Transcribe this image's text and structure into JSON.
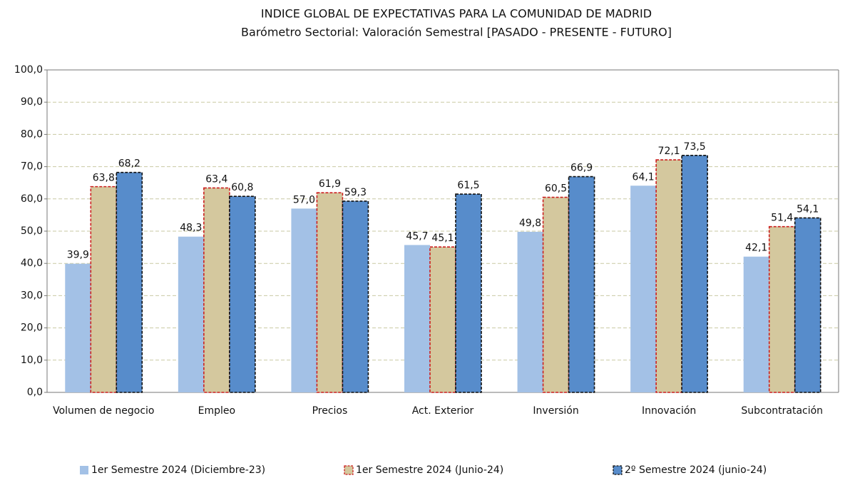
{
  "chart_data": {
    "type": "bar",
    "title": "INDICE GLOBAL DE EXPECTATIVAS PARA LA COMUNIDAD DE MADRID",
    "subtitle": "Barómetro Sectorial: Valoración Semestral [PASADO - PRESENTE - FUTURO]",
    "categories": [
      "Volumen de negocio",
      "Empleo",
      "Precios",
      "Act. Exterior",
      "Inversión",
      "Innovación",
      "Subcontratación"
    ],
    "series": [
      {
        "name": "1er Semestre 2024 (Diciembre-23)",
        "color": "#a3c1e6",
        "border_color": null,
        "values": [
          39.9,
          48.3,
          57.0,
          45.7,
          49.8,
          64.1,
          42.1
        ],
        "value_labels": [
          "39,9",
          "48,3",
          "57,0",
          "45,7",
          "49,8",
          "64,1",
          "42,1"
        ]
      },
      {
        "name": "1er Semestre 2024 (Junio-24)",
        "color": "#d4c89e",
        "border_color": "#cc1f1f",
        "values": [
          63.8,
          63.4,
          61.9,
          45.1,
          60.5,
          72.1,
          51.4
        ],
        "value_labels": [
          "63,8",
          "63,4",
          "61,9",
          "45,1",
          "60,5",
          "72,1",
          "51,4"
        ]
      },
      {
        "name": "2º Semestre 2024 (junio-24)",
        "color": "#578ccb",
        "border_color": "#111111",
        "values": [
          68.2,
          60.8,
          59.3,
          61.5,
          66.9,
          73.5,
          54.1
        ],
        "value_labels": [
          "68,2",
          "60,8",
          "59,3",
          "61,5",
          "66,9",
          "73,5",
          "54,1"
        ]
      }
    ],
    "ylim": [
      0,
      100
    ],
    "yticks": [
      {
        "value": 0,
        "label": "0,0"
      },
      {
        "value": 10,
        "label": "10,0"
      },
      {
        "value": 20,
        "label": "20,0"
      },
      {
        "value": 30,
        "label": "30,0"
      },
      {
        "value": 40,
        "label": "40,0"
      },
      {
        "value": 50,
        "label": "50,0"
      },
      {
        "value": 60,
        "label": "60,0"
      },
      {
        "value": 70,
        "label": "70,0"
      },
      {
        "value": 80,
        "label": "80,0"
      },
      {
        "value": 90,
        "label": "90,0"
      },
      {
        "value": 100,
        "label": "100,0"
      }
    ],
    "grid": true,
    "legend": "bottom"
  }
}
